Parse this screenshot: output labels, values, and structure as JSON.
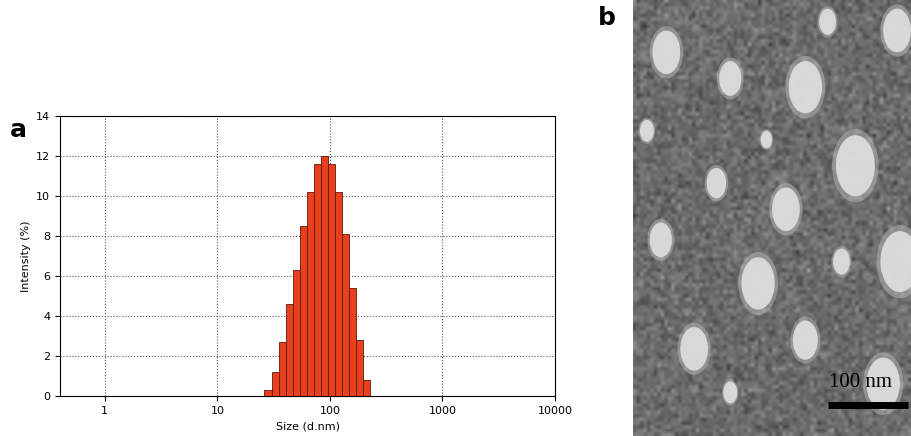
{
  "chart_data": {
    "type": "histogram",
    "panel_label": "a",
    "x_label": "Size (d.nm)",
    "y_label": "Intensity (%)",
    "bins": [
      26.2,
      30.3,
      35.0,
      40.4,
      46.7,
      54.0,
      62.4,
      72.1,
      83.3,
      96.3,
      111.3,
      128.6,
      148.6,
      171.7,
      198.5,
      229.4
    ],
    "values": [
      0.3,
      1.2,
      2.7,
      4.6,
      6.3,
      8.5,
      10.2,
      11.6,
      12.0,
      11.6,
      10.2,
      8.1,
      5.4,
      2.8,
      0.8
    ],
    "color": "#e8401c",
    "log": "x",
    "xlim": [
      0.4,
      10000
    ],
    "xticks": [
      1,
      10,
      100,
      1000,
      10000
    ],
    "ylim": [
      0,
      14
    ],
    "yticks": [
      0,
      2,
      4,
      6,
      8,
      10,
      12,
      14
    ],
    "grid": true
  },
  "image": {
    "panel_label": "b",
    "scale_bar_label": "100 nm"
  }
}
